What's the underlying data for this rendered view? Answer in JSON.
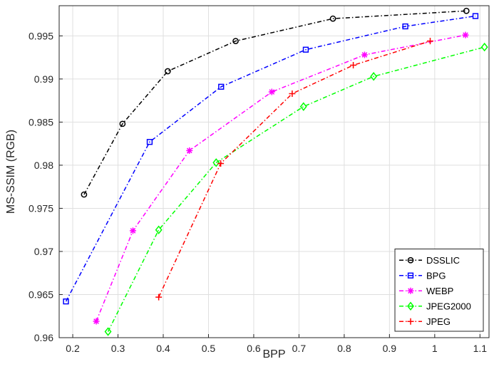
{
  "chart_data": {
    "type": "line",
    "xlabel": "BPP",
    "ylabel": "MS-SSIM (RGB)",
    "xlim": [
      0.17,
      1.12
    ],
    "ylim": [
      0.96,
      0.9985
    ],
    "xticks": [
      "0.2",
      "0.3",
      "0.4",
      "0.5",
      "0.6",
      "0.7",
      "0.8",
      "0.9",
      "1",
      "1.1"
    ],
    "yticks": [
      "0.96",
      "0.965",
      "0.97",
      "0.975",
      "0.98",
      "0.985",
      "0.99",
      "0.995"
    ],
    "grid": true,
    "legend_position": "bottom-right",
    "series": [
      {
        "name": "DSSLIC",
        "color": "#000000",
        "marker": "circle",
        "x": [
          0.225,
          0.31,
          0.41,
          0.56,
          0.775,
          1.07
        ],
        "y": [
          0.9766,
          0.9848,
          0.9909,
          0.9944,
          0.997,
          0.9979
        ]
      },
      {
        "name": "BPG",
        "color": "#0000ff",
        "marker": "square",
        "x": [
          0.185,
          0.37,
          0.528,
          0.715,
          0.935,
          1.09
        ],
        "y": [
          0.9642,
          0.9827,
          0.9891,
          0.9934,
          0.9961,
          0.9973
        ]
      },
      {
        "name": "WEBP",
        "color": "#ff00ff",
        "marker": "asterisk",
        "x": [
          0.252,
          0.333,
          0.458,
          0.64,
          0.845,
          1.068
        ],
        "y": [
          0.9619,
          0.9724,
          0.9817,
          0.9885,
          0.9928,
          0.9951
        ]
      },
      {
        "name": "JPEG2000",
        "color": "#00ff00",
        "marker": "diamond",
        "x": [
          0.278,
          0.39,
          0.517,
          0.71,
          0.865,
          1.11
        ],
        "y": [
          0.9607,
          0.9725,
          0.9803,
          0.9868,
          0.9903,
          0.9937
        ]
      },
      {
        "name": "JPEG",
        "color": "#ff0000",
        "marker": "plus",
        "x": [
          0.39,
          0.527,
          0.685,
          0.82,
          0.99
        ],
        "y": [
          0.9647,
          0.9802,
          0.9883,
          0.9916,
          0.9944
        ]
      }
    ]
  }
}
